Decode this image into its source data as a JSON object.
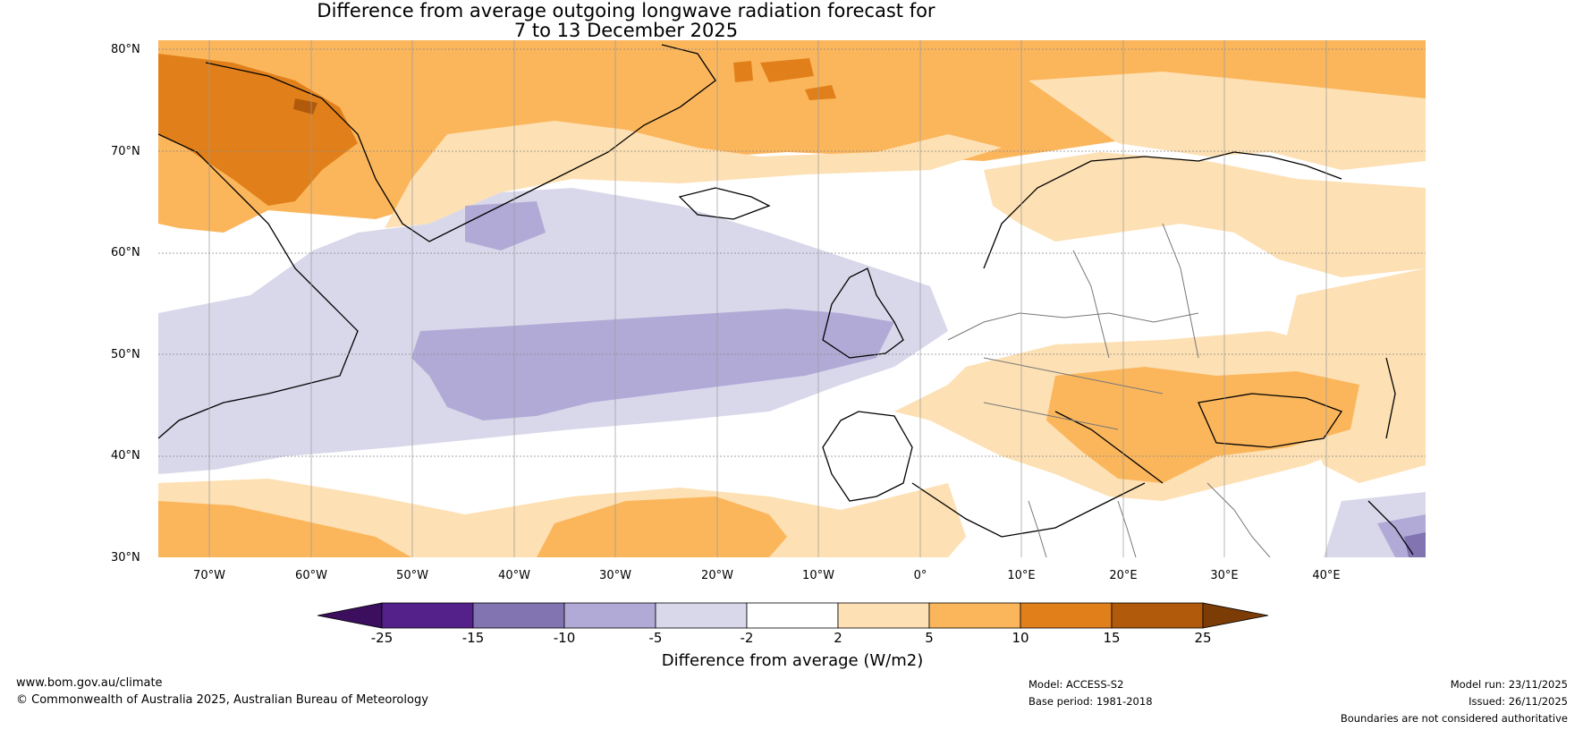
{
  "title": {
    "line1": "Difference from average outgoing longwave radiation forecast for",
    "line2": "7 to 13 December 2025"
  },
  "map": {
    "lat_labels": [
      "80°N",
      "70°N",
      "60°N",
      "50°N",
      "40°N",
      "30°N"
    ],
    "lon_labels": [
      "70°W",
      "60°W",
      "50°W",
      "40°W",
      "30°W",
      "20°W",
      "10°W",
      "0°",
      "10°E",
      "20°E",
      "30°E",
      "40°E"
    ]
  },
  "colorbar": {
    "title": "Difference from average (W/m2)",
    "ticks": [
      "-25",
      "-15",
      "-10",
      "-5",
      "-2",
      "2",
      "5",
      "10",
      "15",
      "25"
    ],
    "colors": [
      "#3b0f5e",
      "#54218a",
      "#8174b0",
      "#b2aad6",
      "#d9d8eb",
      "#ffffff",
      "#fde0b3",
      "#fbb65c",
      "#e1801a",
      "#b15a0c",
      "#7c3c05"
    ]
  },
  "footer": {
    "website": "www.bom.gov.au/climate",
    "copyright": "© Commonwealth of Australia 2025, Australian Bureau of Meteorology",
    "model": "Model: ACCESS-S2",
    "base_period": "Base period: 1981-2018",
    "model_run": "Model run: 23/11/2025",
    "issued": "Issued: 26/11/2025",
    "disclaimer": "Boundaries are not considered authoritative"
  }
}
